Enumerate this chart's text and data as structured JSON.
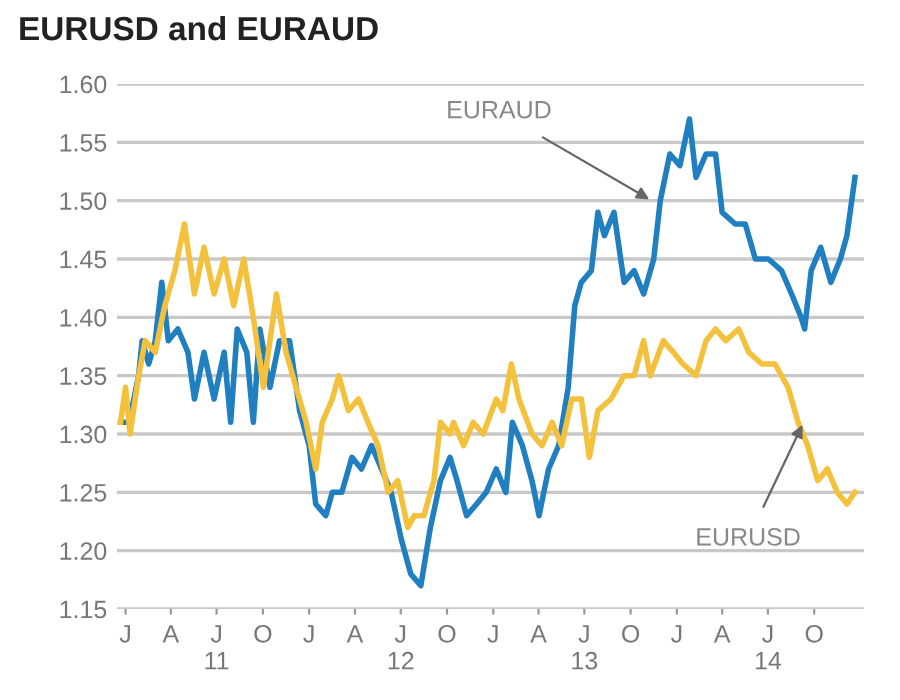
{
  "chart_data": {
    "type": "line",
    "title": "EURUSD and EURAUD",
    "xlim": [
      "2010-12-15",
      "2015-01-08"
    ],
    "xticks": [
      {
        "value": "2011-01-01",
        "label": "J"
      },
      {
        "value": "2011-04-01",
        "label": "A"
      },
      {
        "value": "2011-07-01",
        "label": "J\n11"
      },
      {
        "value": "2011-10-01",
        "label": "O"
      },
      {
        "value": "2012-01-01",
        "label": "J"
      },
      {
        "value": "2012-04-01",
        "label": "A"
      },
      {
        "value": "2012-07-01",
        "label": "J\n12"
      },
      {
        "value": "2012-10-01",
        "label": "O"
      },
      {
        "value": "2013-01-01",
        "label": "J"
      },
      {
        "value": "2013-04-01",
        "label": "A"
      },
      {
        "value": "2013-07-01",
        "label": "J\n13"
      },
      {
        "value": "2013-10-01",
        "label": "O"
      },
      {
        "value": "2014-01-01",
        "label": "J"
      },
      {
        "value": "2014-04-01",
        "label": "A"
      },
      {
        "value": "2014-07-01",
        "label": "J\n14"
      },
      {
        "value": "2014-10-01",
        "label": "O"
      }
    ],
    "ylim": [
      1.15,
      1.6
    ],
    "yticks": [
      1.15,
      {
        "value": 1.2,
        "label": "1.20"
      },
      1.25,
      {
        "value": 1.3,
        "label": "1.30"
      },
      1.35,
      {
        "value": 1.4,
        "label": "1.40"
      },
      1.45,
      {
        "value": 1.5,
        "label": "1.50"
      },
      1.55,
      {
        "value": 1.6,
        "label": "1.60"
      }
    ],
    "grid": "y",
    "legend": false,
    "marker": "none",
    "line_style": "solid",
    "series": [
      {
        "color": "#1f7fc0",
        "x": [
          "2010-12-22",
          "2011-01-08",
          "2011-01-27",
          "2011-02-03",
          "2011-02-16",
          "2011-03-01",
          "2011-03-14",
          "2011-03-27",
          "2011-04-15",
          "2011-05-05",
          "2011-05-18",
          "2011-06-06",
          "2011-06-26",
          "2011-07-16",
          "2011-07-29",
          "2011-08-11",
          "2011-08-30",
          "2011-09-12",
          "2011-09-25",
          "2011-10-15",
          "2011-11-03",
          "2011-11-23",
          "2011-12-13",
          "2012-01-01",
          "2012-01-14",
          "2012-02-03",
          "2012-02-16",
          "2012-03-06",
          "2012-03-26",
          "2012-04-14",
          "2012-05-04",
          "2012-05-24",
          "2012-06-12",
          "2012-07-02",
          "2012-07-21",
          "2012-08-10",
          "2012-08-29",
          "2012-09-18",
          "2012-10-07",
          "2012-10-21",
          "2012-11-09",
          "2012-11-29",
          "2012-12-18",
          "2013-01-07",
          "2013-01-26",
          "2013-02-08",
          "2013-02-28",
          "2013-03-19",
          "2013-04-02",
          "2013-04-21",
          "2013-05-11",
          "2013-05-30",
          "2013-06-12",
          "2013-06-25",
          "2013-07-15",
          "2013-07-28",
          "2013-08-10",
          "2013-08-29",
          "2013-09-18",
          "2013-10-08",
          "2013-10-27",
          "2013-11-16",
          "2013-11-29",
          "2013-12-18",
          "2014-01-07",
          "2014-01-26",
          "2014-02-08",
          "2014-02-28",
          "2014-03-19",
          "2014-04-01",
          "2014-04-27",
          "2014-05-17",
          "2014-06-06",
          "2014-07-02",
          "2014-07-28",
          "2014-08-17",
          "2014-09-05",
          "2014-09-12",
          "2014-09-25",
          "2014-10-14",
          "2014-11-03",
          "2014-11-22",
          "2014-12-05",
          "2014-12-21"
        ],
        "values": [
          1.31,
          1.31,
          1.35,
          1.38,
          1.36,
          1.38,
          1.43,
          1.38,
          1.39,
          1.37,
          1.33,
          1.37,
          1.33,
          1.37,
          1.31,
          1.39,
          1.37,
          1.31,
          1.39,
          1.34,
          1.38,
          1.38,
          1.32,
          1.29,
          1.24,
          1.23,
          1.25,
          1.25,
          1.28,
          1.27,
          1.29,
          1.27,
          1.25,
          1.21,
          1.18,
          1.17,
          1.22,
          1.26,
          1.28,
          1.26,
          1.23,
          1.24,
          1.25,
          1.27,
          1.25,
          1.31,
          1.29,
          1.26,
          1.23,
          1.27,
          1.29,
          1.34,
          1.41,
          1.43,
          1.44,
          1.49,
          1.47,
          1.49,
          1.43,
          1.44,
          1.42,
          1.45,
          1.5,
          1.54,
          1.53,
          1.57,
          1.52,
          1.54,
          1.54,
          1.49,
          1.48,
          1.48,
          1.45,
          1.45,
          1.44,
          1.42,
          1.4,
          1.39,
          1.44,
          1.46,
          1.43,
          1.45,
          1.47,
          1.52
        ]
      },
      {
        "color": "#f4c13d",
        "x": [
          "2010-12-22",
          "2011-01-01",
          "2011-01-10",
          "2011-01-27",
          "2011-02-09",
          "2011-03-01",
          "2011-03-20",
          "2011-04-09",
          "2011-04-28",
          "2011-05-18",
          "2011-06-06",
          "2011-06-26",
          "2011-07-16",
          "2011-08-04",
          "2011-08-24",
          "2011-09-12",
          "2011-10-02",
          "2011-10-15",
          "2011-10-28",
          "2011-11-16",
          "2011-12-06",
          "2011-12-26",
          "2012-01-14",
          "2012-01-27",
          "2012-02-16",
          "2012-02-29",
          "2012-03-19",
          "2012-04-08",
          "2012-04-27",
          "2012-05-17",
          "2012-06-06",
          "2012-06-25",
          "2012-07-15",
          "2012-07-28",
          "2012-08-16",
          "2012-09-05",
          "2012-09-18",
          "2012-10-07",
          "2012-10-14",
          "2012-11-03",
          "2012-11-22",
          "2012-12-12",
          "2013-01-07",
          "2013-01-20",
          "2013-02-06",
          "2013-02-21",
          "2013-03-19",
          "2013-04-08",
          "2013-04-28",
          "2013-05-17",
          "2013-06-06",
          "2013-06-25",
          "2013-07-11",
          "2013-07-28",
          "2013-08-23",
          "2013-09-18",
          "2013-10-08",
          "2013-10-27",
          "2013-11-09",
          "2013-12-05",
          "2013-12-25",
          "2014-01-13",
          "2014-02-08",
          "2014-02-28",
          "2014-03-19",
          "2014-04-08",
          "2014-05-04",
          "2014-05-24",
          "2014-06-19",
          "2014-07-15",
          "2014-08-10",
          "2014-08-30",
          "2014-09-18",
          "2014-10-08",
          "2014-10-27",
          "2014-11-16",
          "2014-12-05",
          "2014-12-21"
        ],
        "values": [
          1.31,
          1.34,
          1.3,
          1.35,
          1.38,
          1.37,
          1.41,
          1.44,
          1.48,
          1.42,
          1.46,
          1.42,
          1.45,
          1.41,
          1.45,
          1.4,
          1.34,
          1.38,
          1.42,
          1.37,
          1.34,
          1.31,
          1.27,
          1.31,
          1.33,
          1.35,
          1.32,
          1.33,
          1.31,
          1.29,
          1.25,
          1.26,
          1.22,
          1.23,
          1.23,
          1.26,
          1.31,
          1.3,
          1.31,
          1.29,
          1.31,
          1.3,
          1.33,
          1.32,
          1.36,
          1.33,
          1.3,
          1.29,
          1.31,
          1.29,
          1.33,
          1.33,
          1.28,
          1.32,
          1.33,
          1.35,
          1.35,
          1.38,
          1.35,
          1.38,
          1.37,
          1.36,
          1.35,
          1.38,
          1.39,
          1.38,
          1.39,
          1.37,
          1.36,
          1.36,
          1.34,
          1.31,
          1.29,
          1.26,
          1.27,
          1.25,
          1.24,
          1.25
        ]
      }
    ],
    "annotations": [
      {
        "text": "EURAUD",
        "x": "2013-11-12",
        "y": 1.5
      },
      {
        "text": "EURUSD",
        "x": "2014-09-10",
        "y": 1.31
      }
    ]
  }
}
